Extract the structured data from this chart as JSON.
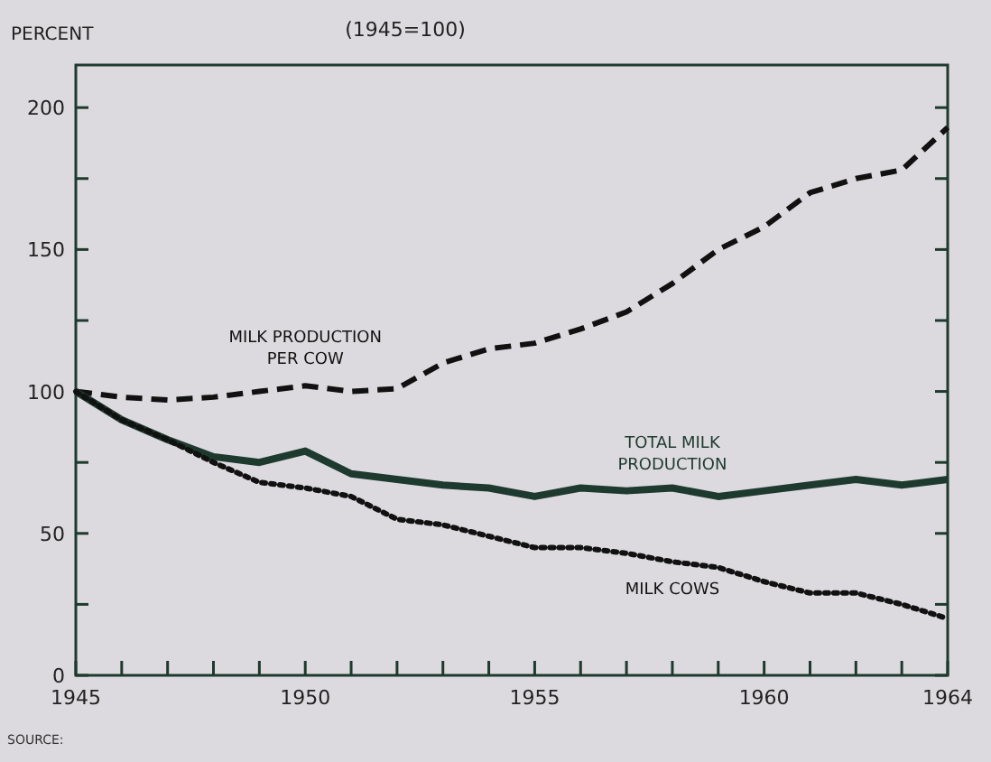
{
  "chart_data": {
    "type": "line",
    "title": "(1945=100)",
    "ylabel": "PERCENT",
    "annotations": [
      "SOURCE:"
    ],
    "x": [
      1945,
      1946,
      1947,
      1948,
      1949,
      1950,
      1951,
      1952,
      1953,
      1954,
      1955,
      1956,
      1957,
      1958,
      1959,
      1960,
      1961,
      1962,
      1963,
      1964
    ],
    "series": [
      {
        "name": "MILK PRODUCTION PER COW",
        "color": "#111111",
        "line_style": "dashed",
        "values": [
          100,
          98,
          97,
          98,
          100,
          102,
          100,
          101,
          110,
          115,
          117,
          122,
          128,
          138,
          150,
          158,
          170,
          175,
          178,
          193
        ]
      },
      {
        "name": "TOTAL MILK PRODUCTION",
        "color": "#1e3a2e",
        "line_style": "solid",
        "values": [
          100,
          90,
          83,
          77,
          75,
          79,
          71,
          69,
          67,
          66,
          63,
          66,
          65,
          66,
          63,
          65,
          67,
          69,
          67,
          69
        ]
      },
      {
        "name": "MILK COWS",
        "color": "#111111",
        "line_style": "dotted",
        "values": [
          100,
          90,
          83,
          75,
          68,
          66,
          63,
          55,
          53,
          49,
          45,
          45,
          43,
          40,
          38,
          33,
          29,
          29,
          25,
          20
        ]
      }
    ],
    "xlim": [
      1945,
      1964
    ],
    "xticks": [
      1945,
      {
        "value": 1946,
        "label": null
      },
      {
        "value": 1947,
        "label": null
      },
      {
        "value": 1948,
        "label": null
      },
      {
        "value": 1949,
        "label": null
      },
      1950,
      {
        "value": 1951,
        "label": null
      },
      {
        "value": 1952,
        "label": null
      },
      {
        "value": 1953,
        "label": null
      },
      {
        "value": 1954,
        "label": null
      },
      1955,
      {
        "value": 1956,
        "label": null
      },
      {
        "value": 1957,
        "label": null
      },
      {
        "value": 1958,
        "label": null
      },
      {
        "value": 1959,
        "label": null
      },
      1960,
      {
        "value": 1961,
        "label": null
      },
      {
        "value": 1962,
        "label": null
      },
      {
        "value": 1963,
        "label": null
      },
      1964
    ],
    "ylim": [
      0,
      215
    ],
    "yticks": [
      0,
      {
        "value": 25,
        "label": null
      },
      50,
      {
        "value": 75,
        "label": null
      },
      100,
      {
        "value": 125,
        "label": null
      },
      150,
      {
        "value": 175,
        "label": null
      },
      200
    ],
    "grid": false,
    "marker": "none"
  }
}
